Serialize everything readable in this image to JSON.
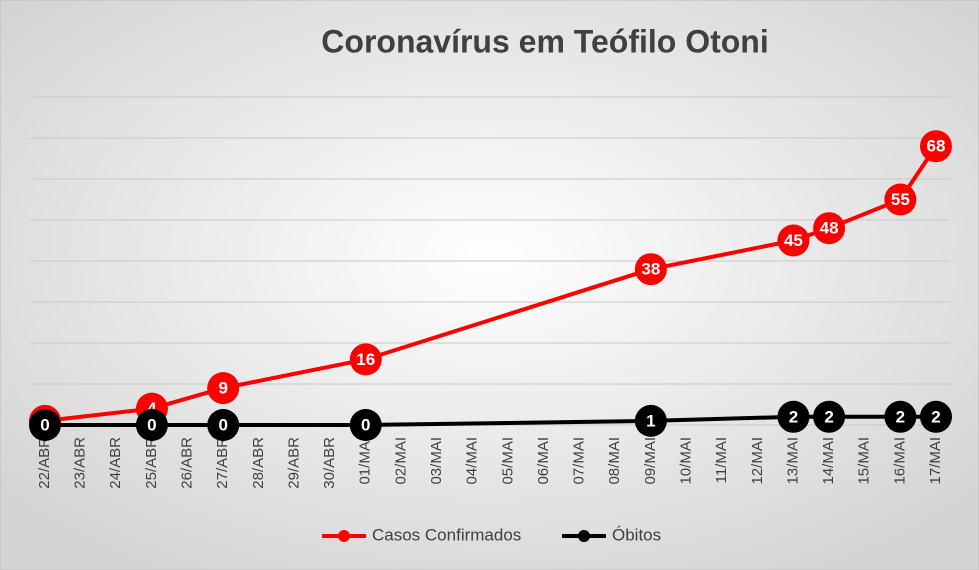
{
  "chart_data": {
    "type": "line",
    "title": "Coronavírus em Teófilo Otoni",
    "categories": [
      "22/ABR",
      "23/ABR",
      "24/ABR",
      "25/ABR",
      "26/ABR",
      "27/ABR",
      "28/ABR",
      "29/ABR",
      "30/ABR",
      "01/MAI",
      "02/MAI",
      "03/MAI",
      "04/MAI",
      "05/MAI",
      "06/MAI",
      "07/MAI",
      "08/MAI",
      "09/MAI",
      "10/MAI",
      "11/MAI",
      "12/MAI",
      "13/MAI",
      "14/MAI",
      "15/MAI",
      "16/MAI",
      "17/MAI"
    ],
    "series": [
      {
        "name": "Casos Confirmados",
        "color": "#ff0000",
        "values": [
          1,
          null,
          null,
          4,
          null,
          9,
          null,
          null,
          null,
          16,
          null,
          null,
          null,
          null,
          null,
          null,
          null,
          38,
          null,
          null,
          null,
          45,
          48,
          null,
          55,
          68
        ]
      },
      {
        "name": "Óbitos",
        "color": "#000000",
        "values": [
          0,
          null,
          null,
          0,
          null,
          0,
          null,
          null,
          null,
          0,
          null,
          null,
          null,
          null,
          null,
          null,
          null,
          1,
          null,
          null,
          null,
          2,
          2,
          null,
          2,
          2
        ]
      }
    ],
    "ylim": [
      0,
      80
    ],
    "yticks": [
      0,
      10,
      20,
      30,
      40,
      50,
      60,
      70,
      80
    ],
    "grid": true,
    "legend": "bottom"
  }
}
